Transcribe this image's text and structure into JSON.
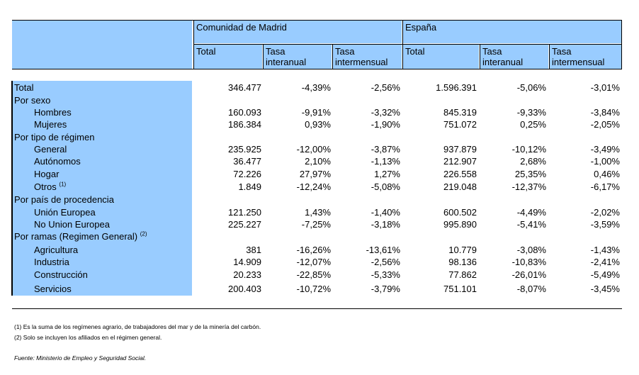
{
  "header": {
    "madrid": "Comunidad de Madrid",
    "espana": "España",
    "col_total": "Total",
    "col_interanual_1": "Tasa",
    "col_interanual_2": "interanual",
    "col_intermensual_1": "Tasa",
    "col_intermensual_2": "intermensual"
  },
  "rows": [
    {
      "label": "Total",
      "indent": false,
      "values": [
        "346.477",
        "-4,39%",
        "-2,56%",
        "1.596.391",
        "-5,06%",
        "-3,01%"
      ]
    },
    {
      "label": "Por sexo",
      "indent": false,
      "values": null
    },
    {
      "label": "Hombres",
      "indent": true,
      "values": [
        "160.093",
        "-9,91%",
        "-3,32%",
        "845.319",
        "-9,33%",
        "-3,84%"
      ]
    },
    {
      "label": "Mujeres",
      "indent": true,
      "values": [
        "186.384",
        "0,93%",
        "-1,90%",
        "751.072",
        "0,25%",
        "-2,05%"
      ]
    },
    {
      "label": "Por tipo de régimen",
      "indent": false,
      "values": null
    },
    {
      "label": "General",
      "indent": true,
      "values": [
        "235.925",
        "-12,00%",
        "-3,87%",
        "937.879",
        "-10,12%",
        "-3,49%"
      ]
    },
    {
      "label": "Autónomos",
      "indent": true,
      "values": [
        "36.477",
        "2,10%",
        "-1,13%",
        "212.907",
        "2,68%",
        "-1,00%"
      ]
    },
    {
      "label": "Hogar",
      "indent": true,
      "values": [
        "72.226",
        "27,97%",
        "1,27%",
        "226.558",
        "25,35%",
        "0,46%"
      ]
    },
    {
      "label": "Otros",
      "indent": true,
      "sup": "(1)",
      "values": [
        "1.849",
        "-12,24%",
        "-5,08%",
        "219.048",
        "-12,37%",
        "-6,17%"
      ]
    },
    {
      "label": "Por país de procedencia",
      "indent": false,
      "values": null
    },
    {
      "label": "Unión Europea",
      "indent": true,
      "values": [
        "121.250",
        "1,43%",
        "-1,40%",
        "600.502",
        "-4,49%",
        "-2,02%"
      ]
    },
    {
      "label": "No Union Europea",
      "indent": true,
      "values": [
        "225.227",
        "-7,25%",
        "-3,18%",
        "995.890",
        "-5,41%",
        "-3,59%"
      ]
    },
    {
      "label": "Por ramas (Regimen General)",
      "indent": false,
      "sup": "(2)",
      "values": null
    },
    {
      "label": "Agricultura",
      "indent": true,
      "values": [
        "381",
        "-16,26%",
        "-13,61%",
        "10.779",
        "-3,08%",
        "-1,43%"
      ]
    },
    {
      "label": "Industria",
      "indent": true,
      "values": [
        "14.909",
        "-12,07%",
        "-2,56%",
        "98.136",
        "-10,83%",
        "-2,41%"
      ]
    },
    {
      "label": "Construcción",
      "indent": true,
      "values": [
        "20.233",
        "-22,85%",
        "-5,33%",
        "77.862",
        "-26,01%",
        "-5,49%"
      ]
    },
    {
      "label": "Servicios",
      "indent": true,
      "values": [
        "200.403",
        "-10,72%",
        "-3,79%",
        "751.101",
        "-8,07%",
        "-3,45%"
      ]
    }
  ],
  "notes": {
    "note1": "(1) Es la suma de los regímenes  agrario, de trabajadores del mar y de la minería del carbón.",
    "note2": "(2) Solo se incluyen los afiliados en el régimen general.",
    "source": "Fuente: Ministerio de Empleo y Seguridad Social."
  },
  "colors": {
    "header_blue": "#99ccff",
    "line": "#000000"
  }
}
